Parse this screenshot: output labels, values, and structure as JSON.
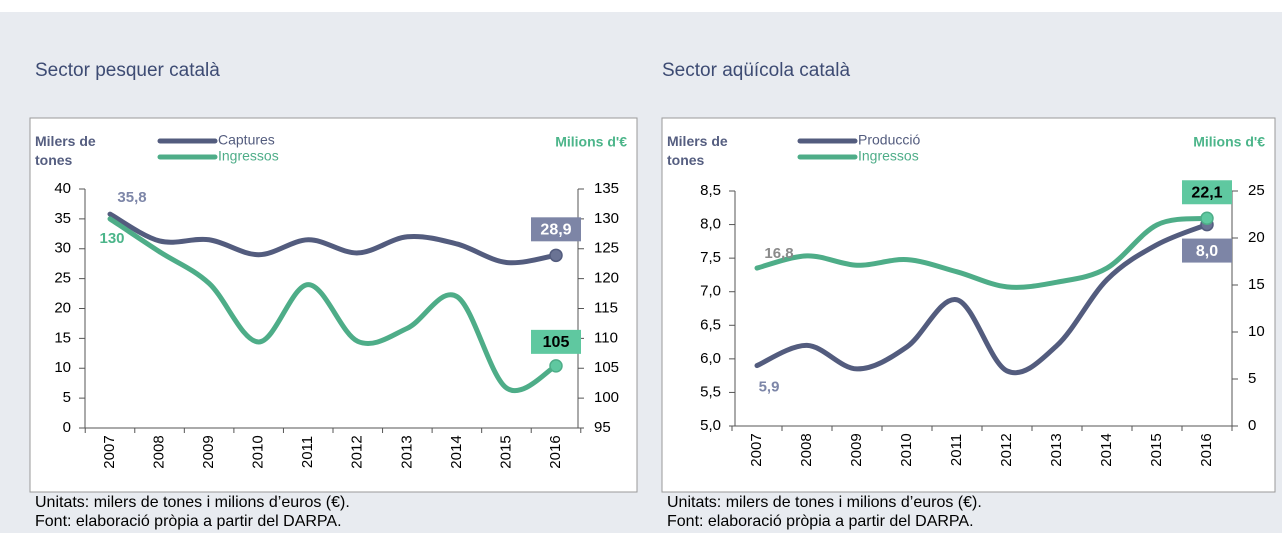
{
  "chart_data": [
    {
      "type": "line",
      "title": "Sector pesquer català",
      "y_label": "Milers de tones",
      "y2_label": "Milions d'€",
      "categories": [
        "2007",
        "2008",
        "2009",
        "2010",
        "2011",
        "2012",
        "2013",
        "2014",
        "2015",
        "2016"
      ],
      "ylim": [
        0,
        40
      ],
      "yticks": [
        0,
        5,
        10,
        15,
        20,
        25,
        30,
        35,
        40
      ],
      "y2lim": [
        95,
        135
      ],
      "y2ticks": [
        95,
        100,
        105,
        110,
        115,
        120,
        125,
        130,
        135
      ],
      "series": [
        {
          "name": "Captures",
          "color": "#535c7e",
          "values": [
            35.8,
            31.3,
            31.5,
            29,
            31.5,
            29.3,
            32,
            30.8,
            27.7,
            28.9
          ],
          "value_labels": [
            "35,8",
            null,
            null,
            null,
            null,
            null,
            null,
            null,
            null,
            "28,9"
          ]
        },
        {
          "name": "Ingressos",
          "color": "#4ead88",
          "axis": "y2",
          "values": [
            130,
            124.5,
            119.2,
            109.4,
            119,
            109.5,
            111.7,
            117,
            101.7,
            105.4
          ],
          "value_labels": [
            "130",
            null,
            null,
            null,
            null,
            null,
            null,
            null,
            null,
            "105"
          ]
        }
      ],
      "notes": [
        "Unitats: milers de tones i milions d’euros (€).",
        "Font: elaboració pròpia a partir del DARPA."
      ]
    },
    {
      "type": "line",
      "title": "Sector aqüícola català",
      "y_label": "Milers de tones",
      "y2_label": "Milions d'€",
      "categories": [
        "2007",
        "2008",
        "2009",
        "2010",
        "2011",
        "2012",
        "2013",
        "2014",
        "2015",
        "2016"
      ],
      "ylim": [
        5,
        8.5
      ],
      "yticks": [
        {
          "value": 5,
          "label": "5,0"
        },
        {
          "value": 5.5,
          "label": "5,5"
        },
        {
          "value": 6,
          "label": "6,0"
        },
        {
          "value": 6.5,
          "label": "6,5"
        },
        {
          "value": 7,
          "label": "7,0"
        },
        {
          "value": 7.5,
          "label": "7,5"
        },
        {
          "value": 8,
          "label": "8,0"
        },
        {
          "value": 8.5,
          "label": "8,5"
        }
      ],
      "y2lim": [
        0,
        25
      ],
      "y2ticks": [
        0,
        5,
        10,
        15,
        20,
        25
      ],
      "series": [
        {
          "name": "Producció",
          "color": "#535c7e",
          "values": [
            5.9,
            6.2,
            5.85,
            6.18,
            6.88,
            5.82,
            6.2,
            7.18,
            7.7,
            8.0
          ],
          "value_labels": [
            "5,9",
            null,
            null,
            null,
            null,
            null,
            null,
            null,
            null,
            "8,0"
          ]
        },
        {
          "name": "Ingressos",
          "color": "#4ead88",
          "axis": "y2",
          "values": [
            16.8,
            18.1,
            17.1,
            17.7,
            16.4,
            14.8,
            15.3,
            16.8,
            21.4,
            22.1
          ],
          "value_labels": [
            "16,8",
            null,
            null,
            null,
            null,
            null,
            null,
            null,
            null,
            "22,1"
          ]
        }
      ],
      "notes": [
        "Unitats: milers de tones i milions d’euros (€).",
        "Font: elaboració pròpia a partir del DARPA."
      ]
    }
  ]
}
